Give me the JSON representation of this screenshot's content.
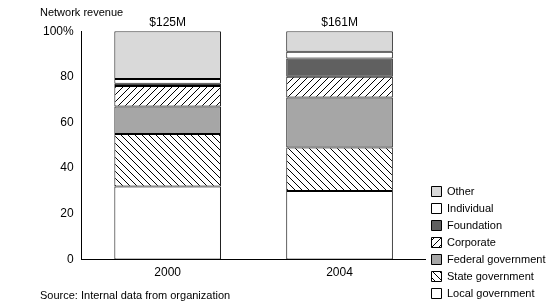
{
  "chart_data": {
    "type": "bar",
    "title": "Network revenue",
    "source": "Source: Internal data from organization",
    "categories": [
      "2000",
      "2004"
    ],
    "annotations": [
      "$125M",
      "$161M"
    ],
    "stacked": true,
    "grid": false,
    "legend": "right",
    "ylim": [
      0,
      100
    ],
    "yticks": [
      0,
      20,
      40,
      60,
      80,
      {
        "value": 100,
        "label": "100%"
      }
    ],
    "series": [
      {
        "name": "Local government",
        "color": "#ffffff",
        "values": [
          32,
          30
        ]
      },
      {
        "name": "State government",
        "color": "#ffffff",
        "line_style": "hatched_down",
        "values": [
          23,
          19
        ]
      },
      {
        "name": "Federal government",
        "color": "#a6a6a6",
        "values": [
          12,
          22
        ]
      },
      {
        "name": "Corporate",
        "color": "#ffffff",
        "line_style": "hatched_up",
        "values": [
          9,
          9
        ]
      },
      {
        "name": "Foundation",
        "color": "#606060",
        "values": [
          1,
          8
        ]
      },
      {
        "name": "Individual",
        "color": "#ffffff",
        "values": [
          2,
          3
        ]
      },
      {
        "name": "Other",
        "color": "#d9d9d9",
        "values": [
          21,
          9
        ]
      }
    ]
  }
}
